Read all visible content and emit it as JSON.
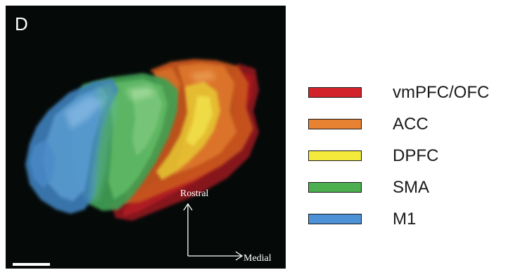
{
  "panel": {
    "letter": "D",
    "axes": {
      "up": "Rostral",
      "right": "Medial"
    }
  },
  "legend": {
    "items": [
      {
        "label": "vmPFC/OFC",
        "color": "#d3232a"
      },
      {
        "label": "ACC",
        "color": "#e88233"
      },
      {
        "label": "DPFC",
        "color": "#f3ea3b"
      },
      {
        "label": "SMA",
        "color": "#4bae4f"
      },
      {
        "label": "M1",
        "color": "#4d92d6"
      }
    ]
  }
}
